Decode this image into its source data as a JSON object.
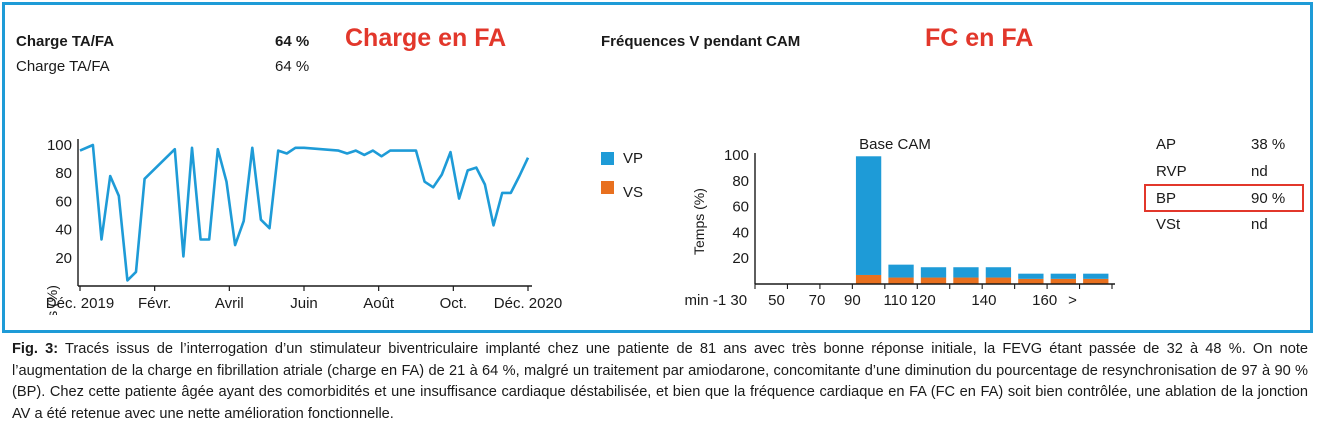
{
  "header": {
    "charge_label_bold": "Charge TA/FA",
    "charge_value_bold": "64 %",
    "charge_label": "Charge TA/FA",
    "charge_value": "64 %",
    "title_left": "Charge en FA",
    "freq_label": "Fréquences V pendant CAM",
    "title_right": "FC en FA"
  },
  "colors": {
    "frame": "#1e9bd7",
    "line": "#1e9bd7",
    "vp": "#1e9bd7",
    "vs": "#e8701f",
    "title": "#e2372b"
  },
  "legend": {
    "vp": "VP",
    "vs": "VS"
  },
  "stats": [
    {
      "label": "AP",
      "value": "38 %"
    },
    {
      "label": "RVP",
      "value": "nd"
    },
    {
      "label": "BP",
      "value": "90 %"
    },
    {
      "label": "VSt",
      "value": "nd"
    }
  ],
  "chart_data": [
    {
      "type": "line",
      "ylabel": "Temps (%)",
      "ylim": [
        0,
        100
      ],
      "yticks": [
        20,
        40,
        60,
        80,
        100
      ],
      "xtick_labels": [
        "Déc. 2019",
        "Févr.",
        "Avril",
        "Juin",
        "Août",
        "Oct.",
        "Déc. 2020"
      ],
      "series": [
        {
          "points": [
            [
              0,
              96
            ],
            [
              3,
              100
            ],
            [
              5,
              33
            ],
            [
              7,
              78
            ],
            [
              9,
              64
            ],
            [
              11,
              4
            ],
            [
              13,
              10
            ],
            [
              15,
              76
            ],
            [
              22,
              97
            ],
            [
              24,
              21
            ],
            [
              26,
              98
            ],
            [
              28,
              33
            ],
            [
              30,
              33
            ],
            [
              32,
              97
            ],
            [
              34,
              74
            ],
            [
              36,
              29
            ],
            [
              38,
              46
            ],
            [
              40,
              98
            ],
            [
              42,
              47
            ],
            [
              44,
              41
            ],
            [
              46,
              96
            ],
            [
              48,
              94
            ],
            [
              50,
              98
            ],
            [
              52,
              98
            ],
            [
              60,
              96
            ],
            [
              62,
              94
            ],
            [
              64,
              96
            ],
            [
              66,
              93
            ],
            [
              68,
              96
            ],
            [
              70,
              92
            ],
            [
              72,
              96
            ],
            [
              78,
              96
            ],
            [
              80,
              74
            ],
            [
              82,
              70
            ],
            [
              84,
              79
            ],
            [
              86,
              95
            ],
            [
              88,
              62
            ],
            [
              90,
              82
            ],
            [
              92,
              84
            ],
            [
              94,
              72
            ],
            [
              96,
              43
            ],
            [
              98,
              66
            ],
            [
              100,
              66
            ],
            [
              102,
              78
            ],
            [
              104,
              91
            ]
          ]
        }
      ]
    },
    {
      "type": "bar",
      "title": "Base CAM",
      "ylabel": "Temps (%)",
      "ylim": [
        0,
        100
      ],
      "yticks": [
        20,
        40,
        60,
        80,
        100
      ],
      "xtick_labels": [
        "min -1 30",
        "50",
        "70",
        "90",
        "110",
        "120",
        "140",
        "160",
        ">"
      ],
      "series": [
        {
          "name": "VP",
          "values": [
            0,
            0,
            0,
            92,
            10,
            8,
            8,
            8,
            4,
            4,
            4
          ]
        },
        {
          "name": "VS",
          "values": [
            0,
            0,
            0,
            7,
            5,
            5,
            5,
            5,
            4,
            4,
            4
          ]
        }
      ]
    }
  ],
  "caption": {
    "label": "Fig. 3:",
    "text": " Tracés issus de l’interrogation d’un stimulateur biventriculaire implanté chez une patiente de 81 ans avec très bonne réponse initiale, la FEVG étant passée de 32 à 48 %. On note l’augmentation de la charge en fibrillation atriale (charge en FA) de 21 à 64 %, malgré un traitement par amiodarone, concomitante d’une diminution du pourcentage de resynchronisation de 97 à 90 % (BP). Chez cette patiente âgée ayant des comorbidités et une insuffisance cardiaque déstabilisée, et bien que la fréquence cardiaque en FA (FC en FA) soit bien contrôlée, une ablation de la jonction AV a été retenue avec une nette amélioration fonctionnelle."
  }
}
